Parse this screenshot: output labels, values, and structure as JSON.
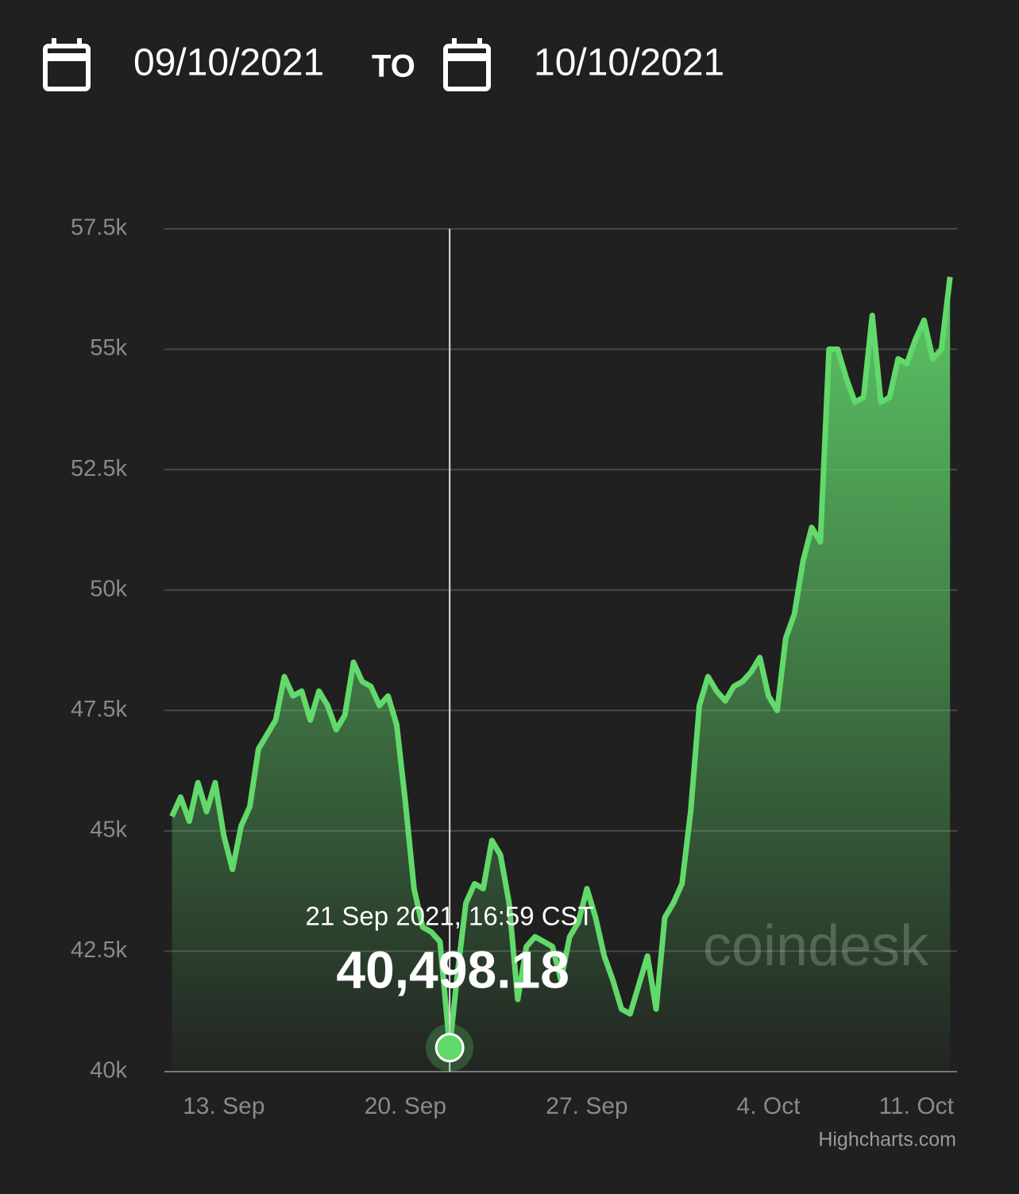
{
  "header": {
    "from": "09/10/2021",
    "separator": "TO",
    "to": "10/10/2021"
  },
  "chart_data": {
    "type": "area",
    "color": "#62d96b",
    "watermark": "coindesk",
    "credits": "Highcharts.com",
    "grid": true,
    "ylim": [
      40000,
      57500
    ],
    "yticks": [
      {
        "value": 40000,
        "label": "40k"
      },
      {
        "value": 42500,
        "label": "42.5k"
      },
      {
        "value": 45000,
        "label": "45k"
      },
      {
        "value": 47500,
        "label": "47.5k"
      },
      {
        "value": 50000,
        "label": "50k"
      },
      {
        "value": 52500,
        "label": "52.5k"
      },
      {
        "value": 55000,
        "label": "55k"
      },
      {
        "value": 57500,
        "label": "57.5k"
      }
    ],
    "xlim": [
      "2021-09-10T17:00",
      "2021-10-11T06:30"
    ],
    "xticks": [
      {
        "value": "2021-09-13T00:00",
        "label": "13. Sep"
      },
      {
        "value": "2021-09-20T00:00",
        "label": "20. Sep"
      },
      {
        "value": "2021-09-27T00:00",
        "label": "27. Sep"
      },
      {
        "value": "2021-10-04T00:00",
        "label": "4. Oct"
      },
      {
        "value": "2021-10-11T00:00",
        "label": "11. Oct"
      }
    ],
    "x": [
      "2021-09-11T00:00",
      "2021-09-11T08:00",
      "2021-09-11T16:00",
      "2021-09-12T00:00",
      "2021-09-12T08:00",
      "2021-09-12T16:00",
      "2021-09-13T00:00",
      "2021-09-13T08:00",
      "2021-09-13T16:00",
      "2021-09-14T00:00",
      "2021-09-14T08:00",
      "2021-09-14T16:00",
      "2021-09-15T00:00",
      "2021-09-15T08:00",
      "2021-09-15T16:00",
      "2021-09-16T00:00",
      "2021-09-16T08:00",
      "2021-09-16T16:00",
      "2021-09-17T00:00",
      "2021-09-17T08:00",
      "2021-09-17T16:00",
      "2021-09-18T00:00",
      "2021-09-18T08:00",
      "2021-09-18T16:00",
      "2021-09-19T00:00",
      "2021-09-19T08:00",
      "2021-09-19T16:00",
      "2021-09-20T00:00",
      "2021-09-20T08:00",
      "2021-09-20T16:00",
      "2021-09-21T00:00",
      "2021-09-21T08:00",
      "2021-09-21T16:59",
      "2021-09-22T00:00",
      "2021-09-22T08:00",
      "2021-09-22T16:00",
      "2021-09-23T00:00",
      "2021-09-23T08:00",
      "2021-09-23T16:00",
      "2021-09-24T00:00",
      "2021-09-24T08:00",
      "2021-09-24T16:00",
      "2021-09-25T00:00",
      "2021-09-25T08:00",
      "2021-09-25T16:00",
      "2021-09-26T00:00",
      "2021-09-26T08:00",
      "2021-09-26T16:00",
      "2021-09-27T00:00",
      "2021-09-27T08:00",
      "2021-09-27T16:00",
      "2021-09-28T00:00",
      "2021-09-28T08:00",
      "2021-09-28T16:00",
      "2021-09-29T00:00",
      "2021-09-29T08:00",
      "2021-09-29T16:00",
      "2021-09-30T00:00",
      "2021-09-30T08:00",
      "2021-09-30T16:00",
      "2021-10-01T00:00",
      "2021-10-01T08:00",
      "2021-10-01T16:00",
      "2021-10-02T00:00",
      "2021-10-02T08:00",
      "2021-10-02T16:00",
      "2021-10-03T00:00",
      "2021-10-03T08:00",
      "2021-10-03T16:00",
      "2021-10-04T00:00",
      "2021-10-04T08:00",
      "2021-10-04T16:00",
      "2021-10-05T00:00",
      "2021-10-05T08:00",
      "2021-10-05T16:00",
      "2021-10-06T00:00",
      "2021-10-06T08:00",
      "2021-10-06T16:00",
      "2021-10-07T00:00",
      "2021-10-07T08:00",
      "2021-10-07T16:00",
      "2021-10-08T00:00",
      "2021-10-08T08:00",
      "2021-10-08T16:00",
      "2021-10-09T00:00",
      "2021-10-09T08:00",
      "2021-10-09T16:00",
      "2021-10-10T00:00",
      "2021-10-10T08:00",
      "2021-10-10T16:00",
      "2021-10-11T00:00"
    ],
    "values": [
      45300,
      45700,
      45200,
      46000,
      45400,
      46000,
      44900,
      44200,
      45100,
      45500,
      46700,
      47000,
      47300,
      48200,
      47800,
      47900,
      47300,
      47900,
      47600,
      47100,
      47400,
      48500,
      48100,
      48000,
      47600,
      47800,
      47200,
      45600,
      43800,
      43000,
      42900,
      42700,
      40498.18,
      42000,
      43500,
      43900,
      43800,
      44800,
      44500,
      43500,
      41500,
      42600,
      42800,
      42700,
      42600,
      41900,
      42800,
      43100,
      43800,
      43200,
      42400,
      41900,
      41300,
      41200,
      41800,
      42400,
      41300,
      43200,
      43500,
      43900,
      45400,
      47600,
      48200,
      47900,
      47700,
      48000,
      48100,
      48300,
      48600,
      47800,
      47500,
      49000,
      49500,
      50600,
      51300,
      51000,
      55000,
      55000,
      54400,
      53900,
      54000,
      55700,
      53900,
      54000,
      54800,
      54700,
      55200,
      55600,
      54800,
      55000,
      56500
    ],
    "tooltip": {
      "x": "2021-09-21T16:59",
      "label": "21 Sep 2021, 16:59 CST",
      "value": 40498.18,
      "value_label": "40,498.18"
    }
  }
}
